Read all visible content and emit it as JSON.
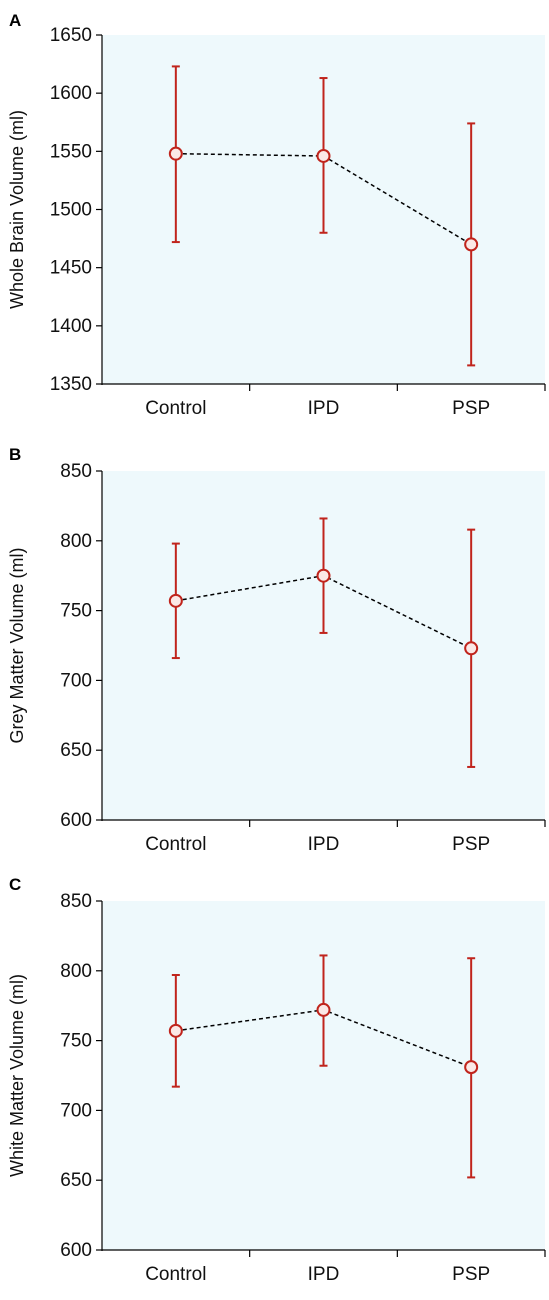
{
  "figure": {
    "plot_background": "#eef9fc",
    "errorbar_color": "#c0241c",
    "marker_fill": "#fbe8e6",
    "connector_color": "#000000"
  },
  "chart_data": [
    {
      "panel": "A",
      "type": "line",
      "categories": [
        "Control",
        "IPD",
        "PSP"
      ],
      "ylabel": "Whole Brain Volume (ml)",
      "ylim": [
        1350,
        1650
      ],
      "yticks": [
        1350,
        1400,
        1450,
        1500,
        1550,
        1600,
        1650
      ],
      "series": [
        {
          "values": [
            1548,
            1546,
            1470
          ],
          "error_low": [
            1472,
            1480,
            1366
          ],
          "error_high": [
            1623,
            1613,
            1574
          ]
        }
      ]
    },
    {
      "panel": "B",
      "type": "line",
      "categories": [
        "Control",
        "IPD",
        "PSP"
      ],
      "ylabel": "Grey Matter Volume (ml)",
      "ylim": [
        600,
        850
      ],
      "yticks": [
        600,
        650,
        700,
        750,
        800,
        850
      ],
      "series": [
        {
          "values": [
            757,
            775,
            723
          ],
          "error_low": [
            716,
            734,
            638
          ],
          "error_high": [
            798,
            816,
            808
          ]
        }
      ]
    },
    {
      "panel": "C",
      "type": "line",
      "categories": [
        "Control",
        "IPD",
        "PSP"
      ],
      "ylabel": "White Matter Volume (ml)",
      "ylim": [
        600,
        850
      ],
      "yticks": [
        600,
        650,
        700,
        750,
        800,
        850
      ],
      "series": [
        {
          "values": [
            757,
            772,
            731
          ],
          "error_low": [
            717,
            732,
            652
          ],
          "error_high": [
            797,
            811,
            809
          ]
        }
      ]
    }
  ]
}
